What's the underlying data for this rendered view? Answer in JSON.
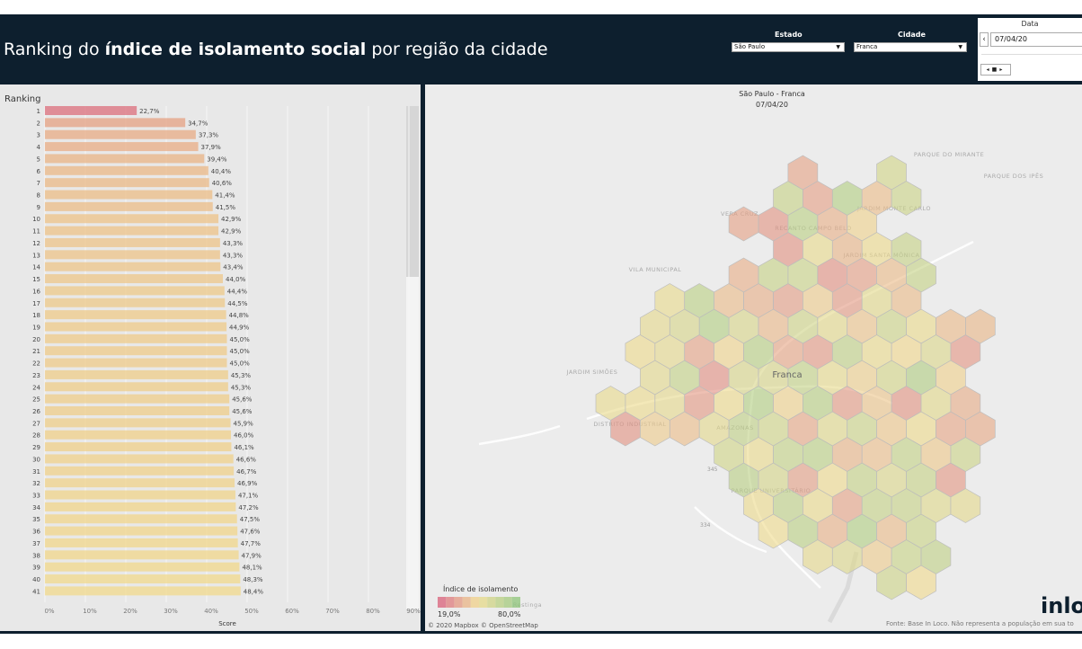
{
  "header": {
    "title_prefix": "Ranking do ",
    "title_bold": "índice de isolamento social",
    "title_suffix": " por região da cidade"
  },
  "filters": {
    "estado_label": "Estado",
    "estado_value": "São Paulo",
    "cidade_label": "Cidade",
    "cidade_value": "Franca",
    "data_label": "Data",
    "data_value": "07/04/20"
  },
  "ranking": {
    "title": "Ranking",
    "x_label": "Score",
    "x_ticks": [
      "0%",
      "10%",
      "20%",
      "30%",
      "40%",
      "50%",
      "60%",
      "70%",
      "80%",
      "90%"
    ]
  },
  "chart_data": {
    "type": "bar",
    "orientation": "horizontal",
    "title": "Ranking",
    "xlabel": "Score",
    "xlim": [
      0,
      90
    ],
    "categories": [
      "1",
      "2",
      "3",
      "4",
      "5",
      "6",
      "7",
      "8",
      "9",
      "10",
      "11",
      "12",
      "13",
      "14",
      "15",
      "16",
      "17",
      "18",
      "19",
      "20",
      "21",
      "22",
      "23",
      "24",
      "25",
      "26",
      "27",
      "28",
      "29",
      "30",
      "31",
      "32",
      "33",
      "34",
      "35",
      "36",
      "37",
      "38",
      "39",
      "40",
      "41"
    ],
    "values": [
      22.7,
      34.7,
      37.3,
      37.9,
      39.4,
      40.4,
      40.6,
      41.4,
      41.5,
      42.9,
      42.9,
      43.3,
      43.3,
      43.4,
      44.0,
      44.4,
      44.5,
      44.8,
      44.9,
      45.0,
      45.0,
      45.0,
      45.3,
      45.3,
      45.6,
      45.6,
      45.9,
      46.0,
      46.1,
      46.6,
      46.7,
      46.9,
      47.1,
      47.2,
      47.5,
      47.6,
      47.7,
      47.9,
      48.1,
      48.3,
      48.4
    ],
    "labels": [
      "22,7%",
      "34,7%",
      "37,3%",
      "37,9%",
      "39,4%",
      "40,4%",
      "40,6%",
      "41,4%",
      "41,5%",
      "42,9%",
      "42,9%",
      "43,3%",
      "43,3%",
      "43,4%",
      "44,0%",
      "44,4%",
      "44,5%",
      "44,8%",
      "44,9%",
      "45,0%",
      "45,0%",
      "45,0%",
      "45,3%",
      "45,3%",
      "45,6%",
      "45,6%",
      "45,9%",
      "46,0%",
      "46,1%",
      "46,6%",
      "46,7%",
      "46,9%",
      "47,1%",
      "47,2%",
      "47,5%",
      "47,6%",
      "47,7%",
      "47,9%",
      "48,1%",
      "48,3%",
      "48,4%"
    ]
  },
  "map": {
    "title": "São Paulo - Franca",
    "date": "07/04/20",
    "city_label": "Franca",
    "place_labels": [
      "PARQUE DO MIRANTE",
      "PARQUE DOS IPÊS",
      "JARDIM MONTE CARLO",
      "JARDIM SANTA MÔNICA",
      "RECANTO CAMPO BELO",
      "VILA MUNICIPAL",
      "DISTRITO INDUSTRIAL",
      "AMAZONAS",
      "PARQUE UNIVERSITÁRIO",
      "JARDIM SIMÕES",
      "VERA CRUZ",
      "Restinga"
    ],
    "road_labels": [
      "345",
      "334"
    ],
    "legend_title": "Índice de isolamento",
    "legend_min": "19,0%",
    "legend_max": "80,0%",
    "attribution": "© 2020 Mapbox © OpenStreetMap",
    "source": "Fonte: Base In Loco. Não representa a população em sua to",
    "logo": "inlo",
    "colors": {
      "low": "#d9607a",
      "mid": "#f2dc8c",
      "high": "#8fc67a"
    }
  }
}
